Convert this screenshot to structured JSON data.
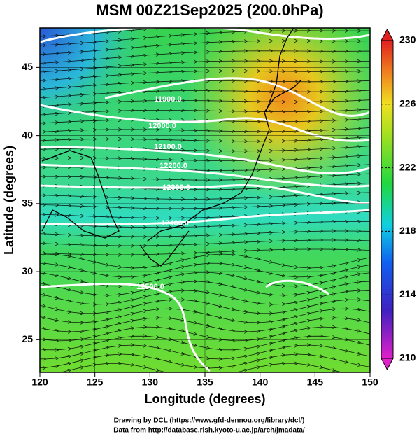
{
  "title": "MSM 00Z21Sep2025 (200.0hPa)",
  "x_axis": {
    "label": "Longitude (degrees)",
    "lim": [
      120,
      150
    ],
    "ticks": [
      120,
      125,
      130,
      135,
      140,
      145,
      150
    ]
  },
  "y_axis": {
    "label": "Latitude  (degrees)",
    "lim": [
      22.6,
      47.9
    ],
    "ticks": [
      25,
      30,
      35,
      40,
      45
    ]
  },
  "colorbar": {
    "lim": [
      210,
      230
    ],
    "ticks": [
      210,
      214,
      218,
      222,
      226,
      230
    ]
  },
  "contour_labels": [
    "11900.0",
    "12000.0",
    "12100.0",
    "12200.0",
    "12300.0",
    "12400.0",
    "12500.0"
  ],
  "footer": [
    "Drawing by DCL (https://www.gfd-dennou.org/library/dcl/)",
    "Data from http://database.rish.kyoto-u.ac.jp/arch/jmadata/"
  ]
}
